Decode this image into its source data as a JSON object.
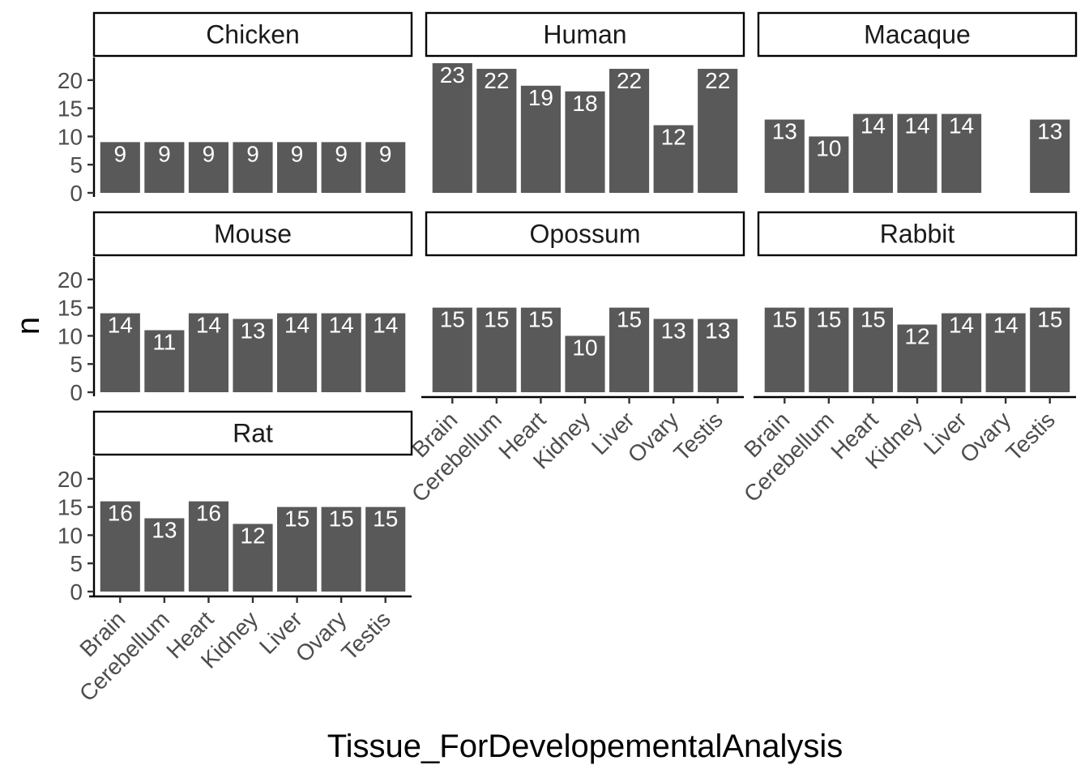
{
  "chart_data": {
    "type": "bar",
    "layout": "faceted",
    "xlabel": "Tissue_ForDevelopementalAnalysis",
    "ylabel": "n",
    "ylim": [
      0,
      24
    ],
    "yticks": [
      0,
      5,
      10,
      15,
      20
    ],
    "grid": false,
    "categories": [
      "Brain",
      "Cerebellum",
      "Heart",
      "Kidney",
      "Liver",
      "Ovary",
      "Testis"
    ],
    "bar_color": "#595959",
    "label_color": "#ffffff",
    "facets": [
      {
        "name": "Chicken",
        "values": [
          9,
          9,
          9,
          9,
          9,
          9,
          9
        ]
      },
      {
        "name": "Human",
        "values": [
          23,
          22,
          19,
          18,
          22,
          12,
          22
        ]
      },
      {
        "name": "Macaque",
        "values": [
          13,
          10,
          14,
          14,
          14,
          null,
          13
        ]
      },
      {
        "name": "Mouse",
        "values": [
          14,
          11,
          14,
          13,
          14,
          14,
          14
        ]
      },
      {
        "name": "Opossum",
        "values": [
          15,
          15,
          15,
          10,
          15,
          13,
          13
        ]
      },
      {
        "name": "Rabbit",
        "values": [
          15,
          15,
          15,
          12,
          14,
          14,
          15
        ]
      },
      {
        "name": "Rat",
        "values": [
          16,
          13,
          16,
          12,
          15,
          15,
          15
        ]
      }
    ]
  }
}
